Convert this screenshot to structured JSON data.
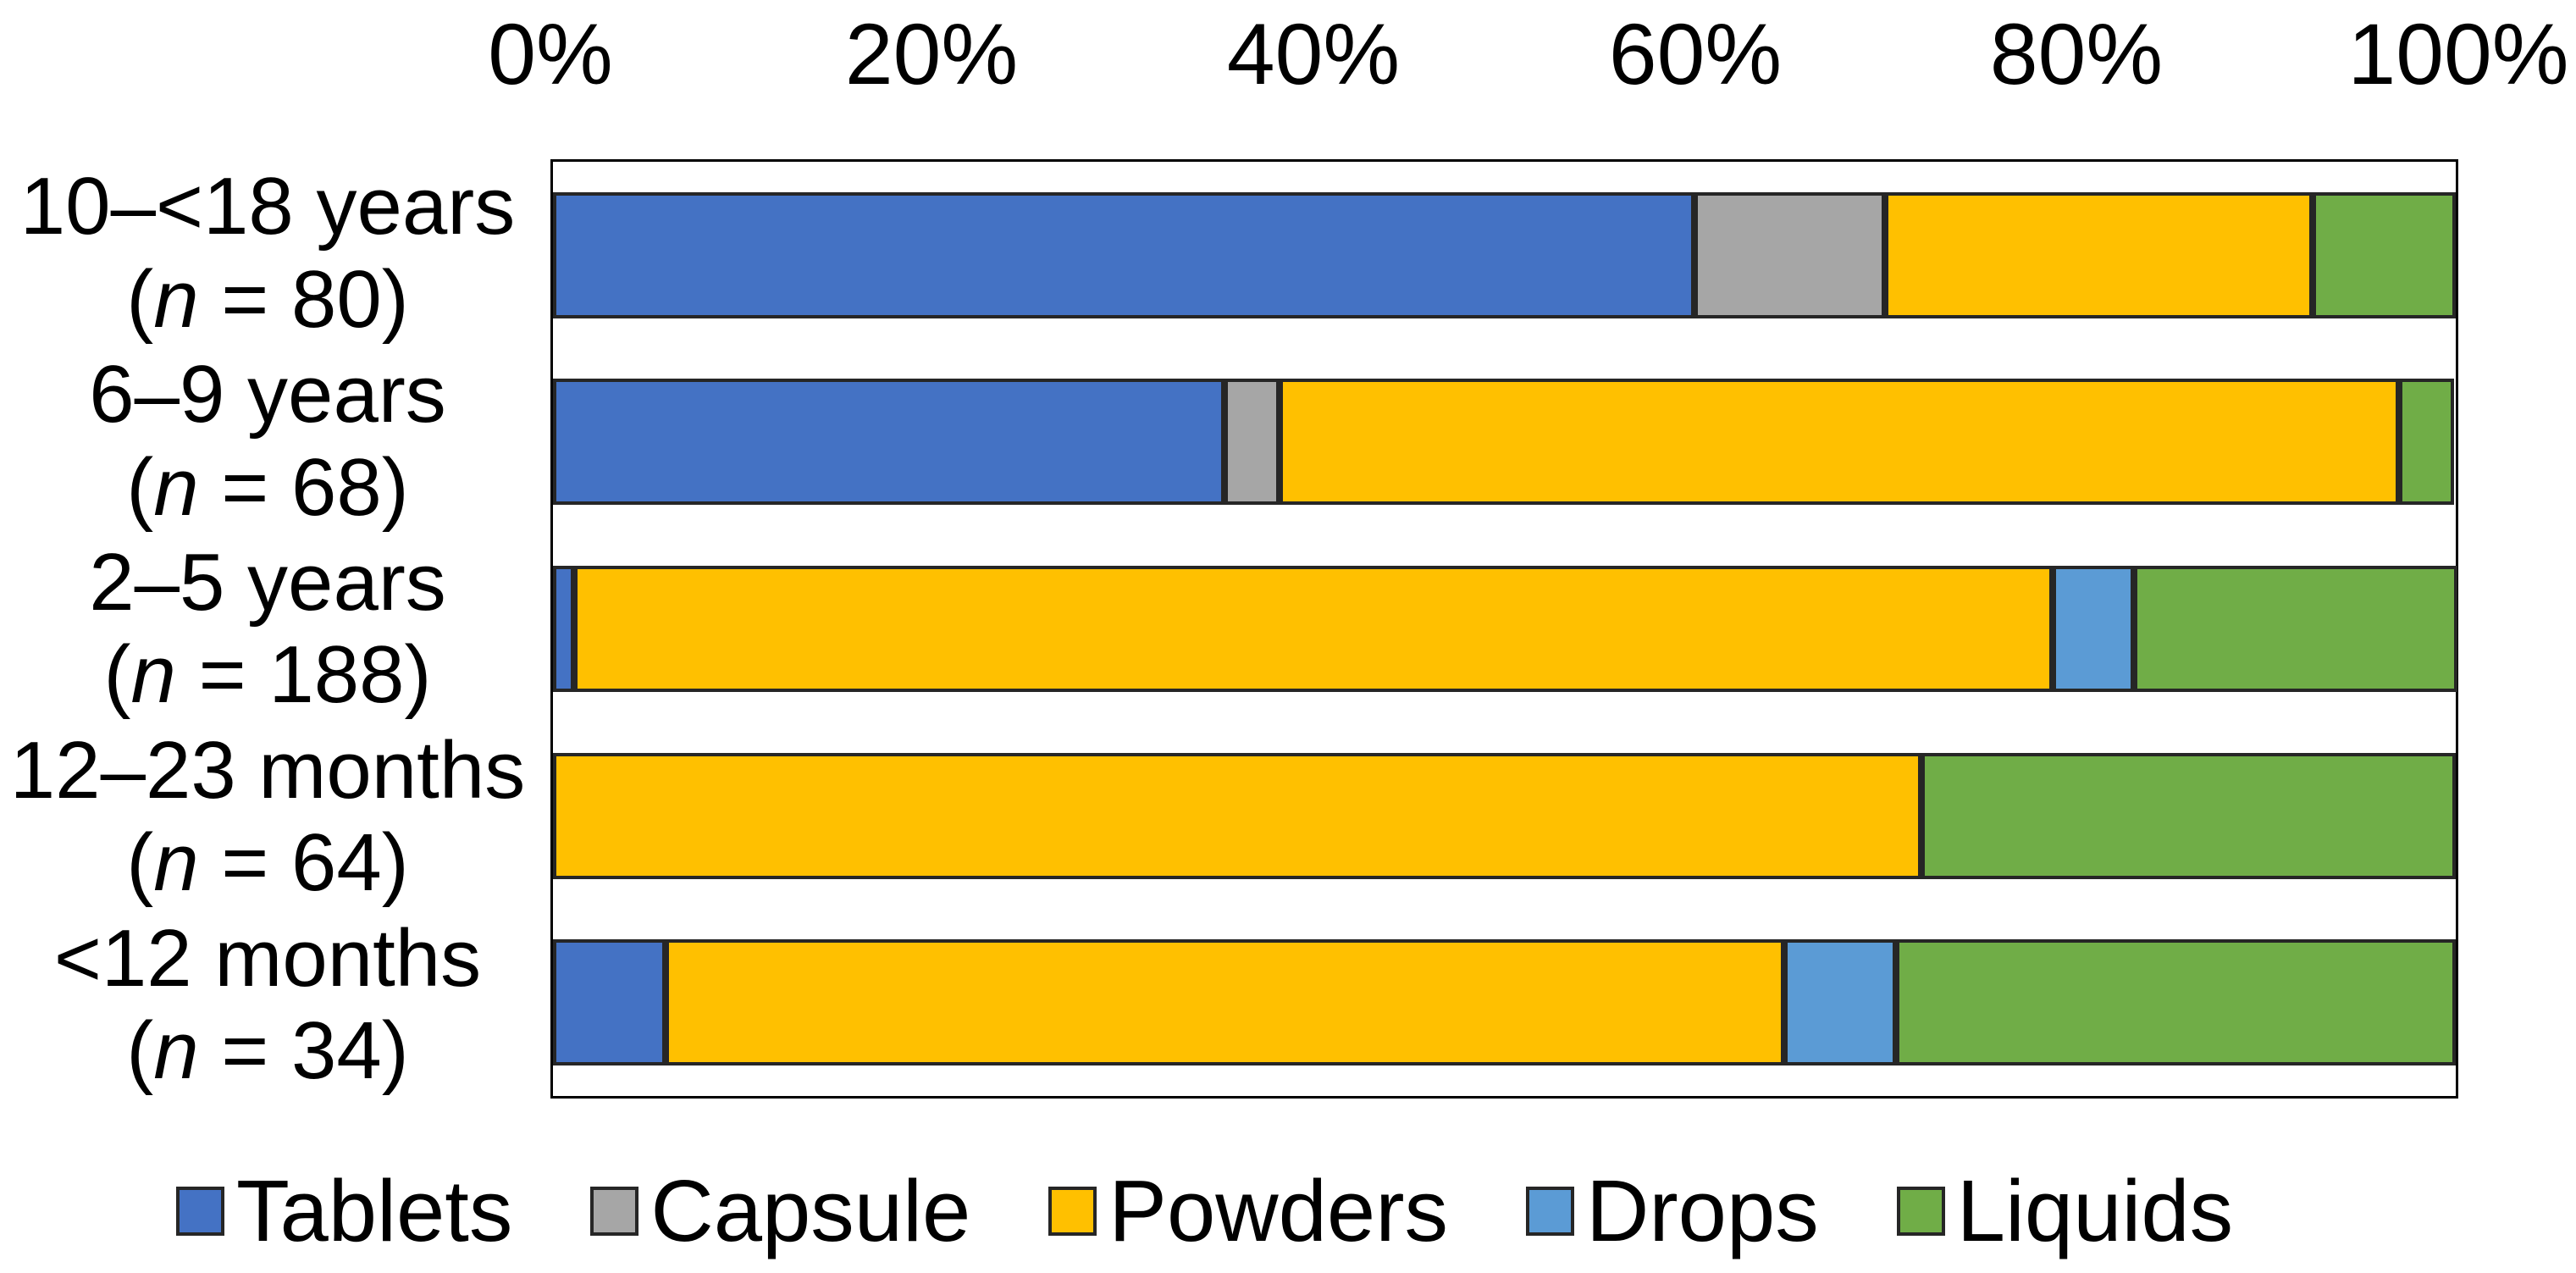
{
  "figure": {
    "background": "#FFFFFF",
    "text_color": "#000000",
    "segment_border_color": "#262626"
  },
  "chart_data": {
    "type": "bar",
    "variant": "horizontal-stacked-100pct",
    "title": "",
    "xlabel": "",
    "ylabel": "",
    "unit": "%",
    "xlim": [
      0,
      100
    ],
    "grid": false,
    "legend_position": "bottom",
    "x_tick_labels": [
      "0%",
      "20%",
      "40%",
      "60%",
      "80%",
      "100%"
    ],
    "categories": [
      {
        "label": "10–<18 years",
        "n_label": "(n = 80)",
        "n": 80
      },
      {
        "label": "6–9 years",
        "n_label": "(n = 68)",
        "n": 68
      },
      {
        "label": "2–5 years",
        "n_label": "(n = 188)",
        "n": 188
      },
      {
        "label": "12–23 months",
        "n_label": "(n = 64)",
        "n": 64
      },
      {
        "label": "<12 months",
        "n_label": "(n = 34)",
        "n": 34
      }
    ],
    "series": [
      {
        "name": "Tablets",
        "color": "#4472C4",
        "values": [
          60,
          35.3,
          1.1,
          0,
          5.9
        ]
      },
      {
        "name": "Capsule",
        "color": "#A6A6A6",
        "values": [
          10,
          2.9,
          0,
          0,
          0
        ]
      },
      {
        "name": "Powders",
        "color": "#FFC000",
        "values": [
          22.5,
          58.8,
          77.7,
          71.9,
          58.8
        ]
      },
      {
        "name": "Drops",
        "color": "#5B9BD5",
        "values": [
          0,
          0,
          4.3,
          0,
          5.9
        ]
      },
      {
        "name": "Liquids",
        "color": "#70AD47",
        "values": [
          7.5,
          2.9,
          17,
          28.1,
          29.4
        ]
      }
    ]
  }
}
